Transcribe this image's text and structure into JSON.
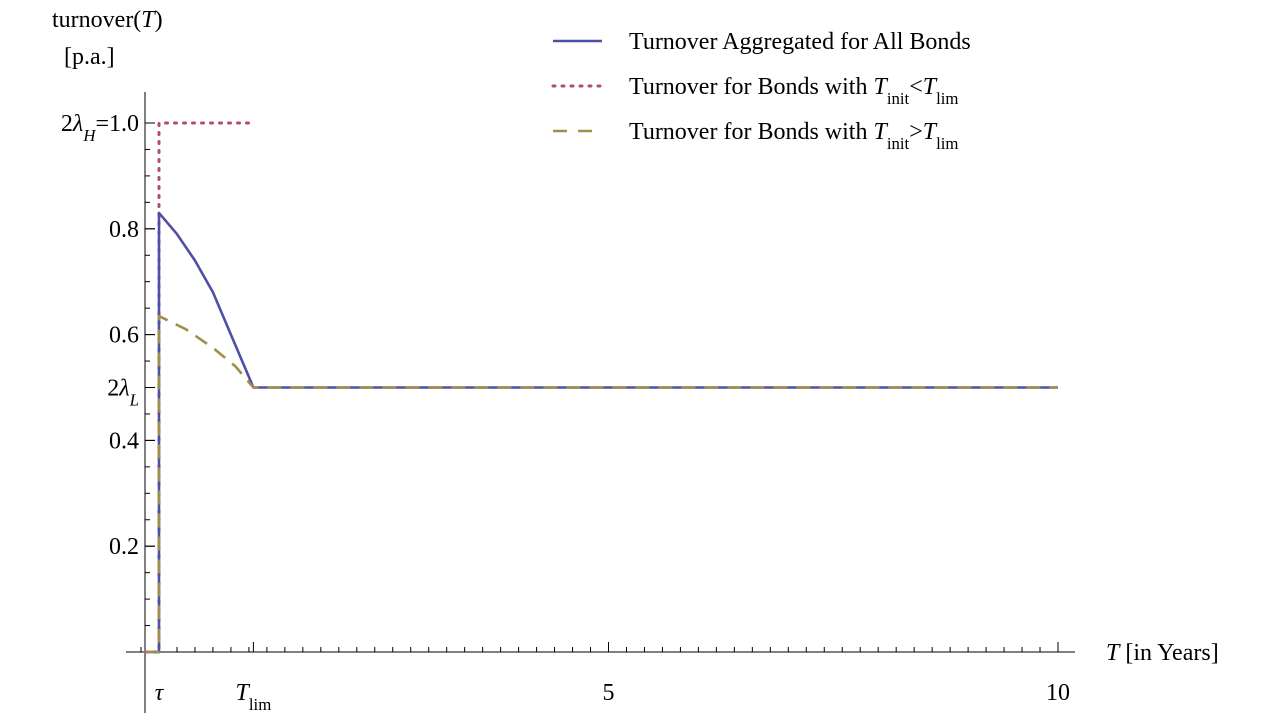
{
  "chart_data": {
    "type": "line",
    "ylabel_line1": "turnover(T)",
    "ylabel_line2": "[p.a.]",
    "xlabel": "T [in Years]",
    "xlim": [
      -0.15,
      10.3
    ],
    "ylim": [
      -0.01,
      1.06
    ],
    "x_ticks": [
      {
        "value": 0.0,
        "label": "τ"
      },
      {
        "value": 1.05,
        "label": "T_lim"
      },
      {
        "value": 5,
        "label": "5"
      },
      {
        "value": 10,
        "label": "10"
      }
    ],
    "y_ticks": [
      {
        "value": 0.2,
        "label": "0.2"
      },
      {
        "value": 0.4,
        "label": "0.4"
      },
      {
        "value": 0.5,
        "label": "2λ_L"
      },
      {
        "value": 0.6,
        "label": "0.6"
      },
      {
        "value": 0.8,
        "label": "0.8"
      },
      {
        "value": 1.0,
        "label": "2λ_H=1.0"
      }
    ],
    "legend_position": "top-right",
    "series": [
      {
        "name": "Turnover Aggregated for All Bonds",
        "color": "#4f4fa5",
        "style": "solid",
        "points": [
          [
            -0.15,
            0
          ],
          [
            -0.02,
            0
          ],
          [
            -0.02,
            0
          ],
          [
            0,
            0
          ],
          [
            0,
            0.83
          ],
          [
            0.2,
            0.79
          ],
          [
            0.4,
            0.74
          ],
          [
            0.6,
            0.68
          ],
          [
            0.8,
            0.6
          ],
          [
            1.05,
            0.5
          ],
          [
            10,
            0.5
          ]
        ]
      },
      {
        "name": "Turnover for Bonds with T_init<T_lim",
        "color": "#b04a78",
        "style": "dotted",
        "points": [
          [
            -0.15,
            0
          ],
          [
            0,
            0
          ],
          [
            0,
            1.0
          ],
          [
            1.05,
            1.0
          ]
        ]
      },
      {
        "name": "Turnover for Bonds with T_init>T_lim",
        "color": "#9e8f4a",
        "style": "dashed",
        "points": [
          [
            -0.15,
            0
          ],
          [
            0,
            0
          ],
          [
            0,
            0.635
          ],
          [
            0.3,
            0.61
          ],
          [
            0.6,
            0.575
          ],
          [
            0.85,
            0.54
          ],
          [
            1.05,
            0.5
          ],
          [
            10,
            0.5
          ]
        ]
      }
    ]
  }
}
